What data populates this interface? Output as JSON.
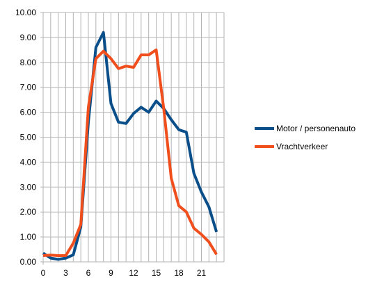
{
  "chart_data": {
    "type": "line",
    "title": "",
    "xlabel": "",
    "ylabel": "",
    "x": [
      0,
      1,
      2,
      3,
      4,
      5,
      6,
      7,
      8,
      9,
      10,
      11,
      12,
      13,
      14,
      15,
      16,
      17,
      18,
      19,
      20,
      21,
      22,
      23
    ],
    "x_tick_labels": [
      "0",
      "3",
      "6",
      "9",
      "12",
      "15",
      "18",
      "21"
    ],
    "x_tick_values": [
      0,
      3,
      6,
      9,
      12,
      15,
      18,
      21
    ],
    "y_tick_labels": [
      "0.00",
      "1.00",
      "2.00",
      "3.00",
      "4.00",
      "5.00",
      "6.00",
      "7.00",
      "8.00",
      "9.00",
      "10.00"
    ],
    "ylim": [
      0,
      10
    ],
    "xlim": [
      0,
      24
    ],
    "grid": true,
    "legend_position": "right",
    "series": [
      {
        "name": "Motor / personenauto",
        "color": "#0b4f8a",
        "values": [
          0.35,
          0.15,
          0.1,
          0.15,
          0.28,
          1.4,
          5.6,
          8.6,
          9.2,
          6.35,
          5.6,
          5.55,
          5.95,
          6.2,
          6.0,
          6.45,
          6.15,
          5.7,
          5.3,
          5.2,
          3.55,
          2.8,
          2.2,
          1.2
        ]
      },
      {
        "name": "Vrachtverkeer",
        "color": "#f04e1c",
        "values": [
          0.25,
          0.27,
          0.25,
          0.25,
          0.75,
          1.5,
          6.2,
          8.15,
          8.45,
          8.15,
          7.75,
          7.85,
          7.8,
          8.3,
          8.3,
          8.5,
          6.15,
          3.35,
          2.25,
          2.0,
          1.35,
          1.1,
          0.8,
          0.3
        ]
      }
    ]
  }
}
